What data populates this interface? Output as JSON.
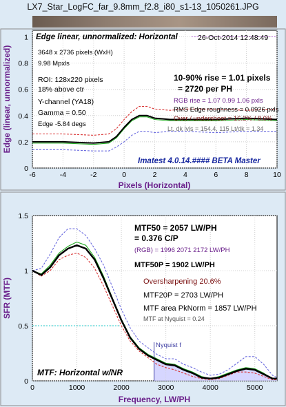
{
  "file_title": "LX7_Star_LogFC_far_9.8mm_f2.8_i80_s1-13_1050261.JPG",
  "colors": {
    "background": "#ddeaf5",
    "black_series": "#000000",
    "red_series": "#d83030",
    "green_series": "#22aa22",
    "blue_series": "#6a6adf",
    "purple_text": "#6a1f8a",
    "nyquist_fill": "#c8c8ff"
  },
  "edge_panel": {
    "header": "Edge linear, unnormalized: Horizontal",
    "timestamp": "26-Oct-2014 12:48:49",
    "dims": "3648 x 2736 pixels (WxH)",
    "mpxls": "9.98 Mpxls",
    "roi": "ROI:  128x220 pixels",
    "above_ctr": "18% above ctr",
    "channel": "Y-channel  (YA18)",
    "gamma": "Gamma = 0.50",
    "edge_angle": "Edge -5.84 degs",
    "rise": "10-90% rise = 1.01 pixels",
    "per_ph": "= 2720 per PH",
    "rgb_rise": "RGB rise = 1.07  0.99  1.06 pxls",
    "roughness": "RMS Edge roughness = 0.0926 pxls",
    "overshoot": "Over / undershoot = 16.2% / 8.0%",
    "lt_dk": "Lt, dk lvls = 154.4, 115   Lt/dk = 1.34",
    "watermark": "Imatest 4.0.14.#### BETA Master",
    "ylabel": "Edge (linear, unnormalized)",
    "xlabel": "Pixels (Horizontal)"
  },
  "mtf_panel": {
    "mtf50": "MTF50 = 2057 LW/PH",
    "cp": "= 0.376 C/P",
    "rgb": "(RGB) = 1996  2071  2172 LW/PH",
    "mtf50p": "MTF50P = 1902 LW/PH",
    "oversharp": "Oversharpening 20.6%",
    "mtf20p": "MTF20P = 2703 LW/PH",
    "area": "MTF area PkNorm = 1857 LW/PH",
    "nyq_value": "MTF at Nyquist = 0.24",
    "nyq_label": "Nyquist f",
    "footer": "MTF: Horizontal w/NR",
    "ylabel": "SFR (MTF)",
    "xlabel": "Frequency, LW/PH"
  },
  "chart_data": [
    {
      "type": "line",
      "title": "Edge linear, unnormalized: Horizontal",
      "xlabel": "Pixels (Horizontal)",
      "ylabel": "Edge (linear, unnormalized)",
      "xlim": [
        -6,
        10
      ],
      "ylim": [
        0,
        1.05
      ],
      "xticks": [
        -6,
        -4,
        -2,
        0,
        2,
        4,
        6,
        8,
        10
      ],
      "yticks": [
        0,
        0.2,
        0.4,
        0.6,
        0.8,
        1
      ],
      "grid": true,
      "series": [
        {
          "color": "#d83030",
          "dash": "3,2",
          "x": [
            -6,
            -4,
            -2,
            -1,
            -0.5,
            0,
            0.5,
            1,
            1.5,
            2,
            3,
            4,
            6,
            8,
            10
          ],
          "y": [
            0.26,
            0.26,
            0.25,
            0.26,
            0.3,
            0.37,
            0.43,
            0.47,
            0.47,
            0.45,
            0.44,
            0.45,
            0.45,
            0.44,
            0.45
          ]
        },
        {
          "color": "#6a6adf",
          "dash": "3,2",
          "x": [
            -6,
            -4,
            -2,
            -1,
            -0.5,
            0,
            0.5,
            1,
            1.5,
            2,
            3,
            4,
            6,
            8,
            10
          ],
          "y": [
            0.14,
            0.14,
            0.13,
            0.13,
            0.16,
            0.2,
            0.25,
            0.28,
            0.28,
            0.27,
            0.28,
            0.28,
            0.27,
            0.28,
            0.28
          ]
        },
        {
          "color": "#22aa22",
          "dash": "",
          "x": [
            -6,
            -4,
            -2,
            -1,
            -0.5,
            0,
            0.5,
            1,
            1.5,
            2,
            3,
            4,
            6,
            8,
            10
          ],
          "y": [
            0.19,
            0.19,
            0.18,
            0.19,
            0.23,
            0.3,
            0.36,
            0.39,
            0.39,
            0.37,
            0.36,
            0.36,
            0.36,
            0.37,
            0.36
          ]
        },
        {
          "color": "#000000",
          "dash": "",
          "width": 2,
          "x": [
            -6,
            -4,
            -2,
            -1,
            -0.5,
            0,
            0.5,
            1,
            1.5,
            2,
            3,
            4,
            6,
            8,
            10
          ],
          "y": [
            0.2,
            0.2,
            0.19,
            0.2,
            0.24,
            0.31,
            0.37,
            0.4,
            0.4,
            0.38,
            0.37,
            0.37,
            0.37,
            0.38,
            0.37
          ]
        },
        {
          "color": "#b050d0",
          "dash": "2,2",
          "x": [
            4.4,
            10
          ],
          "y": [
            1,
            1
          ]
        }
      ]
    },
    {
      "type": "line",
      "title": "",
      "xlabel": "Frequency, LW/PH",
      "ylabel": "SFR (MTF)",
      "xlim": [
        0,
        5500
      ],
      "ylim": [
        0,
        1.5
      ],
      "xticks": [
        0,
        1000,
        2000,
        3000,
        4000,
        5000
      ],
      "yticks": [
        0,
        0.5,
        1,
        1.5
      ],
      "grid": true,
      "nyquist": 2736,
      "series": [
        {
          "color": "#6a6adf",
          "dash": "3,2",
          "x": [
            0,
            200,
            400,
            600,
            800,
            1000,
            1200,
            1400,
            1600,
            1800,
            2000,
            2200,
            2400,
            2600,
            2800,
            3000,
            3200,
            3400,
            3600,
            3800,
            4000,
            4200,
            4400,
            4600,
            4800,
            5000,
            5200,
            5400,
            5500
          ],
          "y": [
            1,
            1.02,
            1.15,
            1.3,
            1.38,
            1.38,
            1.32,
            1.2,
            1.05,
            0.85,
            0.65,
            0.48,
            0.36,
            0.3,
            0.24,
            0.2,
            0.2,
            0.15,
            0.12,
            0.08,
            0.05,
            0.06,
            0.1,
            0.16,
            0.22,
            0.22,
            0.15,
            0.05,
            0.03
          ]
        },
        {
          "color": "#22aa22",
          "dash": "",
          "x": [
            0,
            200,
            400,
            600,
            800,
            1000,
            1200,
            1400,
            1600,
            1800,
            2000,
            2200,
            2400,
            2600,
            2800,
            3000,
            3200,
            3400,
            3600,
            3800,
            4000,
            4200,
            4400,
            4600,
            4800,
            5000,
            5200,
            5400,
            5500
          ],
          "y": [
            1,
            0.97,
            1.05,
            1.16,
            1.22,
            1.26,
            1.23,
            1.12,
            0.95,
            0.75,
            0.56,
            0.4,
            0.3,
            0.24,
            0.2,
            0.16,
            0.15,
            0.11,
            0.08,
            0.04,
            0.02,
            0.04,
            0.07,
            0.1,
            0.12,
            0.11,
            0.07,
            0.02,
            0.02
          ]
        },
        {
          "color": "#d83030",
          "dash": "3,2",
          "x": [
            0,
            200,
            400,
            600,
            800,
            1000,
            1200,
            1400,
            1600,
            1800,
            2000,
            2200,
            2400,
            2600,
            2800,
            3000,
            3200,
            3400,
            3600,
            3800,
            4000,
            4200,
            4400,
            4600,
            4800,
            5000,
            5200,
            5400,
            5500
          ],
          "y": [
            1,
            0.95,
            1.0,
            1.1,
            1.14,
            1.16,
            1.12,
            1.02,
            0.86,
            0.68,
            0.5,
            0.36,
            0.27,
            0.21,
            0.15,
            0.12,
            0.1,
            0.07,
            0.04,
            0.02,
            0.01,
            0.02,
            0.05,
            0.08,
            0.08,
            0.07,
            0.04,
            0.01,
            0.01
          ]
        },
        {
          "color": "#000000",
          "dash": "",
          "width": 2.5,
          "x": [
            0,
            200,
            400,
            600,
            800,
            1000,
            1200,
            1400,
            1600,
            1800,
            2000,
            2200,
            2400,
            2600,
            2800,
            3000,
            3200,
            3400,
            3600,
            3800,
            4000,
            4200,
            4400,
            4600,
            4800,
            5000,
            5200,
            5400,
            5500
          ],
          "y": [
            1,
            0.96,
            1.03,
            1.14,
            1.2,
            1.23,
            1.2,
            1.1,
            0.93,
            0.74,
            0.55,
            0.39,
            0.29,
            0.23,
            0.19,
            0.15,
            0.14,
            0.1,
            0.07,
            0.03,
            0.02,
            0.03,
            0.06,
            0.09,
            0.11,
            0.1,
            0.06,
            0.02,
            0.02
          ]
        },
        {
          "color": "#22cccc",
          "dash": "2,2",
          "x": [
            0,
            1980
          ],
          "y": [
            0.5,
            0.5
          ]
        }
      ]
    }
  ]
}
